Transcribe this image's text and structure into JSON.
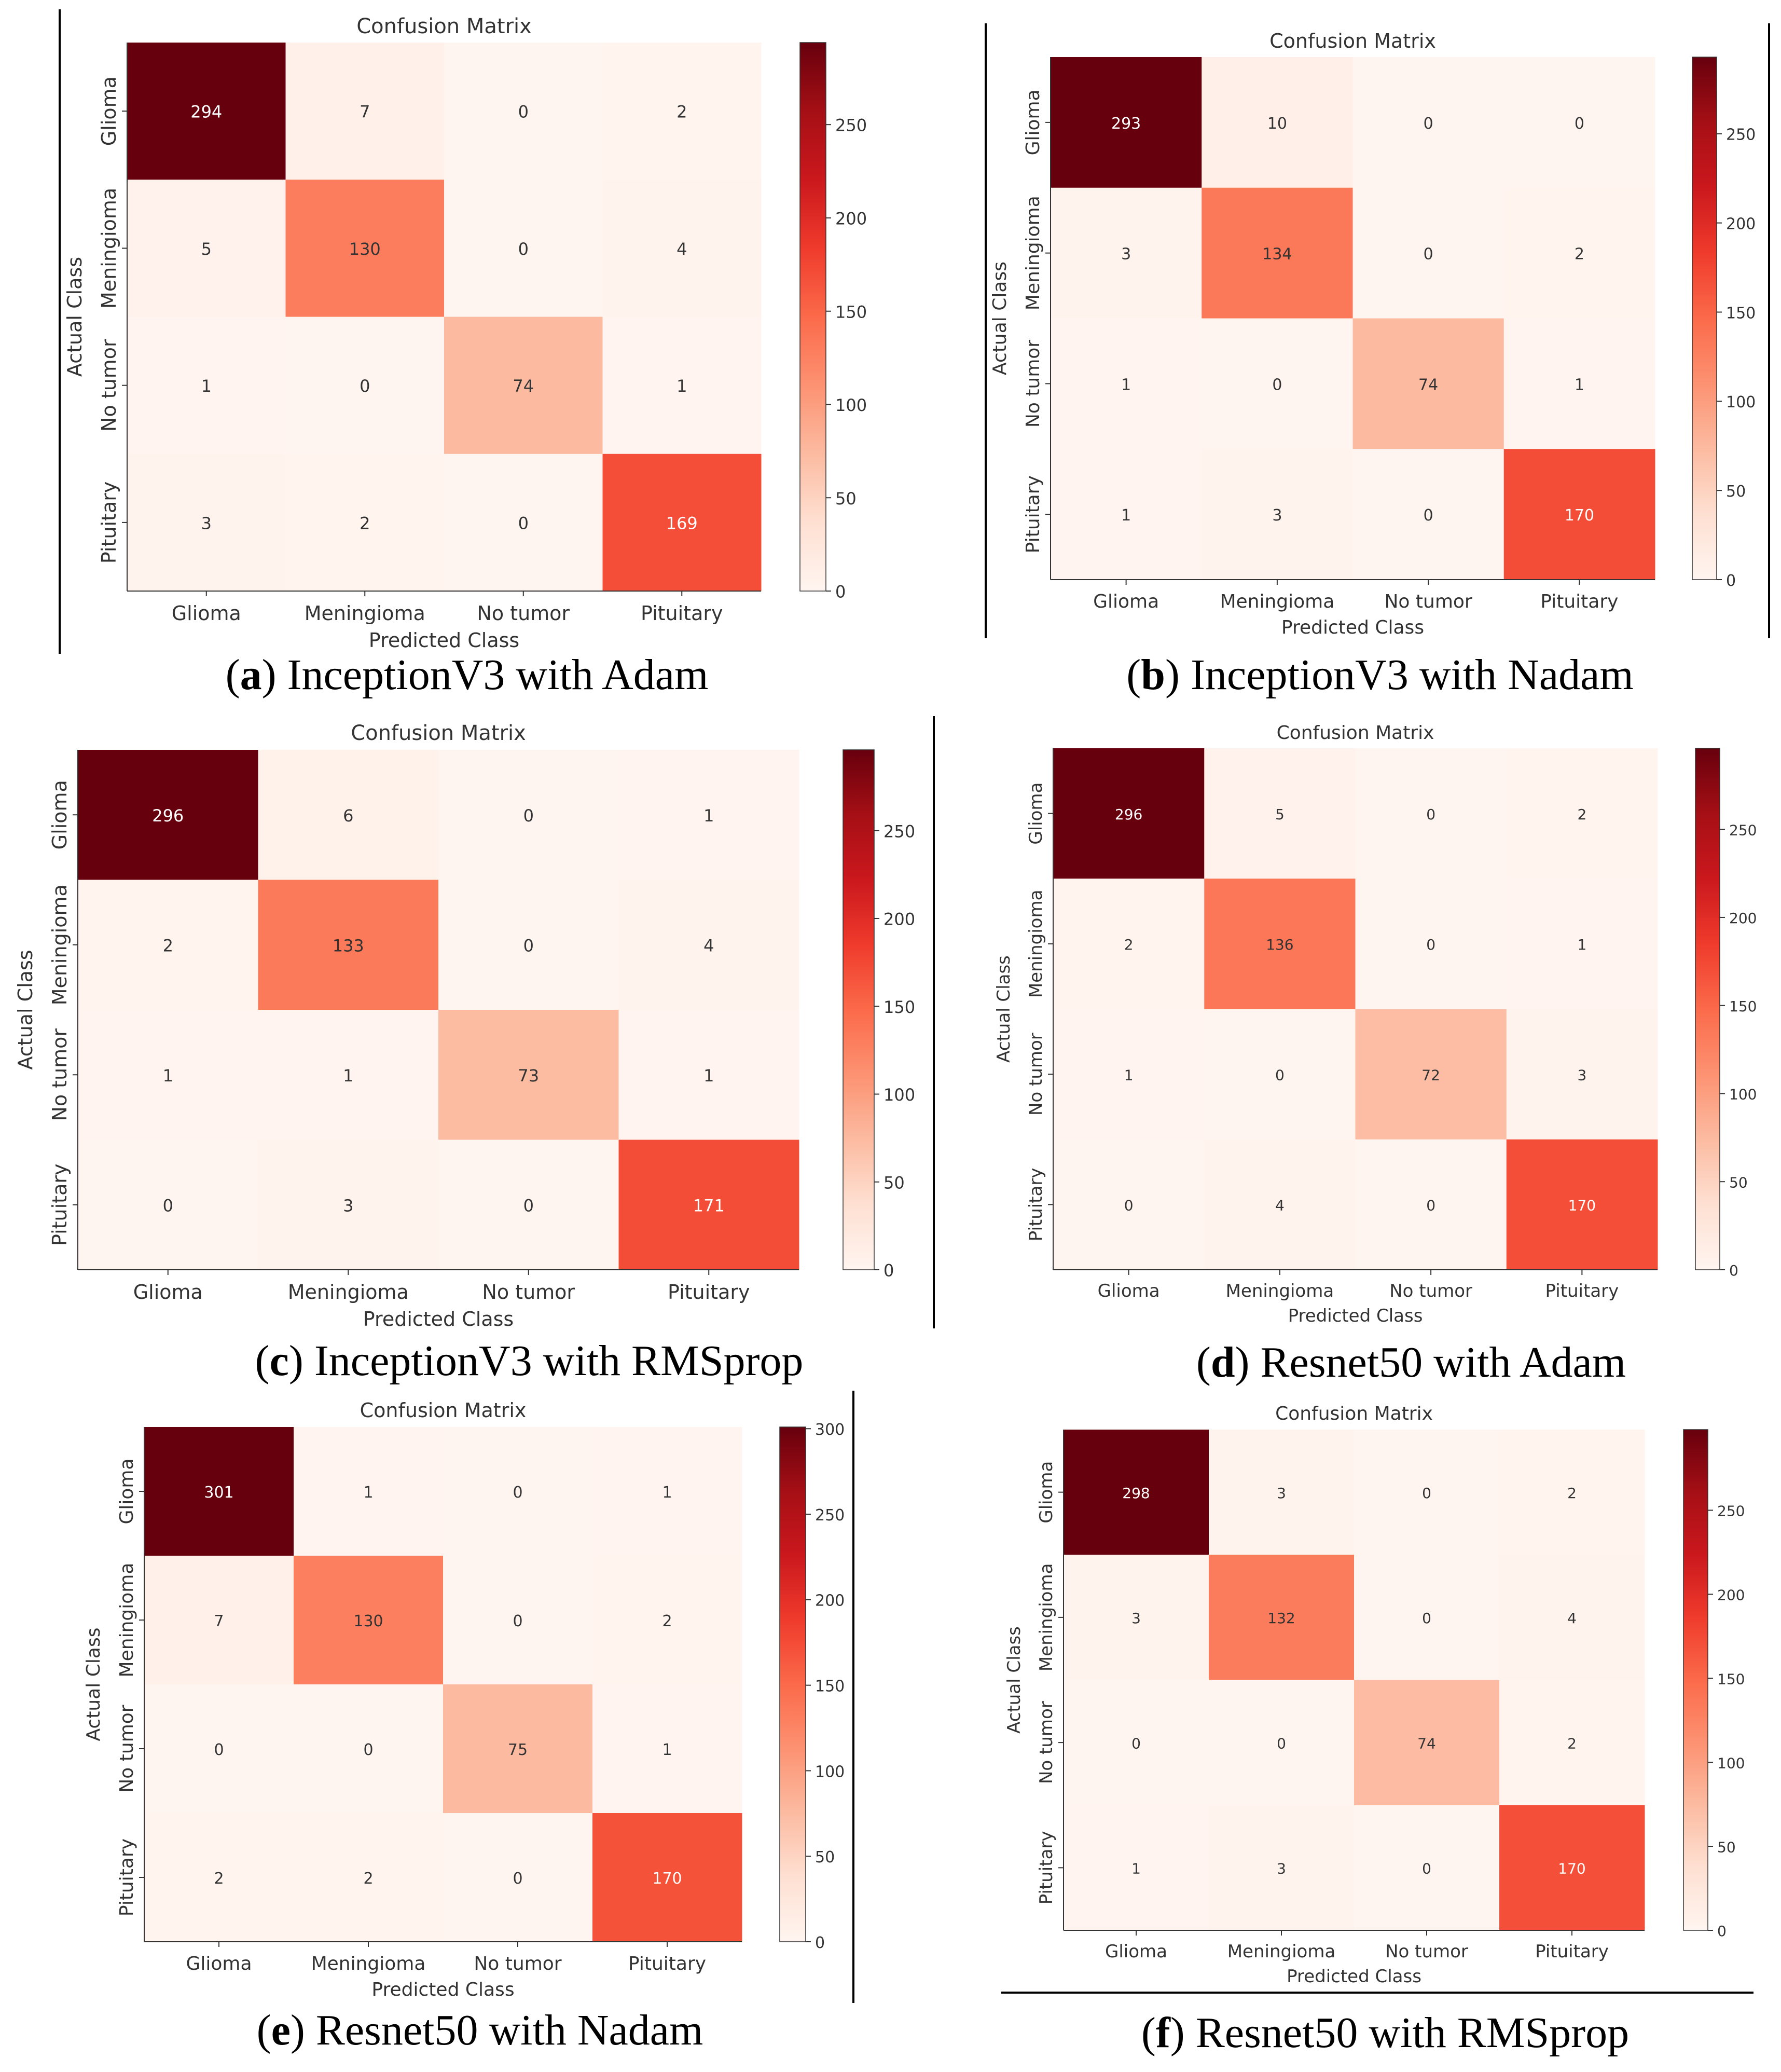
{
  "colors": {
    "page_background": "#ffffff",
    "rule": "#000000",
    "text": "#333333",
    "caption_text": "#000000",
    "cmap": [
      "#fff5f0",
      "#fee0d2",
      "#fcbba1",
      "#fc9272",
      "#fb6a4a",
      "#ef3b2c",
      "#cb181d",
      "#a50f15",
      "#67000d"
    ]
  },
  "panels": [
    {
      "id": "a",
      "caption_letter": "a",
      "caption_text": " InceptionV3 with Adam",
      "chart_data": {
        "type": "heatmap",
        "title": "Confusion Matrix",
        "xlabel": "Predicted Class",
        "ylabel": "Actual Class",
        "x_categories": [
          "Glioma",
          "Meningioma",
          "No tumor",
          "Pituitary"
        ],
        "y_categories": [
          "Glioma",
          "Meningioma",
          "No tumor",
          "Pituitary"
        ],
        "matrix": [
          [
            294,
            7,
            0,
            2
          ],
          [
            5,
            130,
            0,
            4
          ],
          [
            1,
            0,
            74,
            1
          ],
          [
            3,
            2,
            0,
            169
          ]
        ],
        "colorbar_ticks": [
          0,
          50,
          100,
          150,
          200,
          250
        ],
        "color_range": [
          0,
          294
        ],
        "colormap": "Reds"
      }
    },
    {
      "id": "b",
      "caption_letter": "b",
      "caption_text": " InceptionV3 with Nadam",
      "chart_data": {
        "type": "heatmap",
        "title": "Confusion Matrix",
        "xlabel": "Predicted Class",
        "ylabel": "Actual Class",
        "x_categories": [
          "Glioma",
          "Meningioma",
          "No tumor",
          "Pituitary"
        ],
        "y_categories": [
          "Glioma",
          "Meningioma",
          "No tumor",
          "Pituitary"
        ],
        "matrix": [
          [
            293,
            10,
            0,
            0
          ],
          [
            3,
            134,
            0,
            2
          ],
          [
            1,
            0,
            74,
            1
          ],
          [
            1,
            3,
            0,
            170
          ]
        ],
        "colorbar_ticks": [
          0,
          50,
          100,
          150,
          200,
          250
        ],
        "color_range": [
          0,
          293
        ],
        "colormap": "Reds"
      }
    },
    {
      "id": "c",
      "caption_letter": "c",
      "caption_text": " InceptionV3 with RMSprop",
      "chart_data": {
        "type": "heatmap",
        "title": "Confusion Matrix",
        "xlabel": "Predicted Class",
        "ylabel": "Actual Class",
        "x_categories": [
          "Glioma",
          "Meningioma",
          "No tumor",
          "Pituitary"
        ],
        "y_categories": [
          "Glioma",
          "Meningioma",
          "No tumor",
          "Pituitary"
        ],
        "matrix": [
          [
            296,
            6,
            0,
            1
          ],
          [
            2,
            133,
            0,
            4
          ],
          [
            1,
            1,
            73,
            1
          ],
          [
            0,
            3,
            0,
            171
          ]
        ],
        "colorbar_ticks": [
          0,
          50,
          100,
          150,
          200,
          250
        ],
        "color_range": [
          0,
          296
        ],
        "colormap": "Reds"
      }
    },
    {
      "id": "d",
      "caption_letter": "d",
      "caption_text": " Resnet50 with Adam",
      "chart_data": {
        "type": "heatmap",
        "title": "Confusion Matrix",
        "xlabel": "Predicted Class",
        "ylabel": "Actual Class",
        "x_categories": [
          "Glioma",
          "Meningioma",
          "No tumor",
          "Pituitary"
        ],
        "y_categories": [
          "Glioma",
          "Meningioma",
          "No tumor",
          "Pituitary"
        ],
        "matrix": [
          [
            296,
            5,
            0,
            2
          ],
          [
            2,
            136,
            0,
            1
          ],
          [
            1,
            0,
            72,
            3
          ],
          [
            0,
            4,
            0,
            170
          ]
        ],
        "colorbar_ticks": [
          0,
          50,
          100,
          150,
          200,
          250
        ],
        "color_range": [
          0,
          296
        ],
        "colormap": "Reds"
      }
    },
    {
      "id": "e",
      "caption_letter": "e",
      "caption_text": " Resnet50 with Nadam",
      "chart_data": {
        "type": "heatmap",
        "title": "Confusion Matrix",
        "xlabel": "Predicted Class",
        "ylabel": "Actual Class",
        "x_categories": [
          "Glioma",
          "Meningioma",
          "No tumor",
          "Pituitary"
        ],
        "y_categories": [
          "Glioma",
          "Meningioma",
          "No tumor",
          "Pituitary"
        ],
        "matrix": [
          [
            301,
            1,
            0,
            1
          ],
          [
            7,
            130,
            0,
            2
          ],
          [
            0,
            0,
            75,
            1
          ],
          [
            2,
            2,
            0,
            170
          ]
        ],
        "colorbar_ticks": [
          0,
          50,
          100,
          150,
          200,
          250,
          300
        ],
        "color_range": [
          0,
          301
        ],
        "colormap": "Reds"
      }
    },
    {
      "id": "f",
      "caption_letter": "f",
      "caption_text": " Resnet50 with RMSprop",
      "chart_data": {
        "type": "heatmap",
        "title": "Confusion Matrix",
        "xlabel": "Predicted Class",
        "ylabel": "Actual Class",
        "x_categories": [
          "Glioma",
          "Meningioma",
          "No tumor",
          "Pituitary"
        ],
        "y_categories": [
          "Glioma",
          "Meningioma",
          "No tumor",
          "Pituitary"
        ],
        "matrix": [
          [
            298,
            3,
            0,
            2
          ],
          [
            3,
            132,
            0,
            4
          ],
          [
            0,
            0,
            74,
            2
          ],
          [
            1,
            3,
            0,
            170
          ]
        ],
        "colorbar_ticks": [
          0,
          50,
          100,
          150,
          200,
          250
        ],
        "color_range": [
          0,
          298
        ],
        "colormap": "Reds"
      }
    }
  ]
}
